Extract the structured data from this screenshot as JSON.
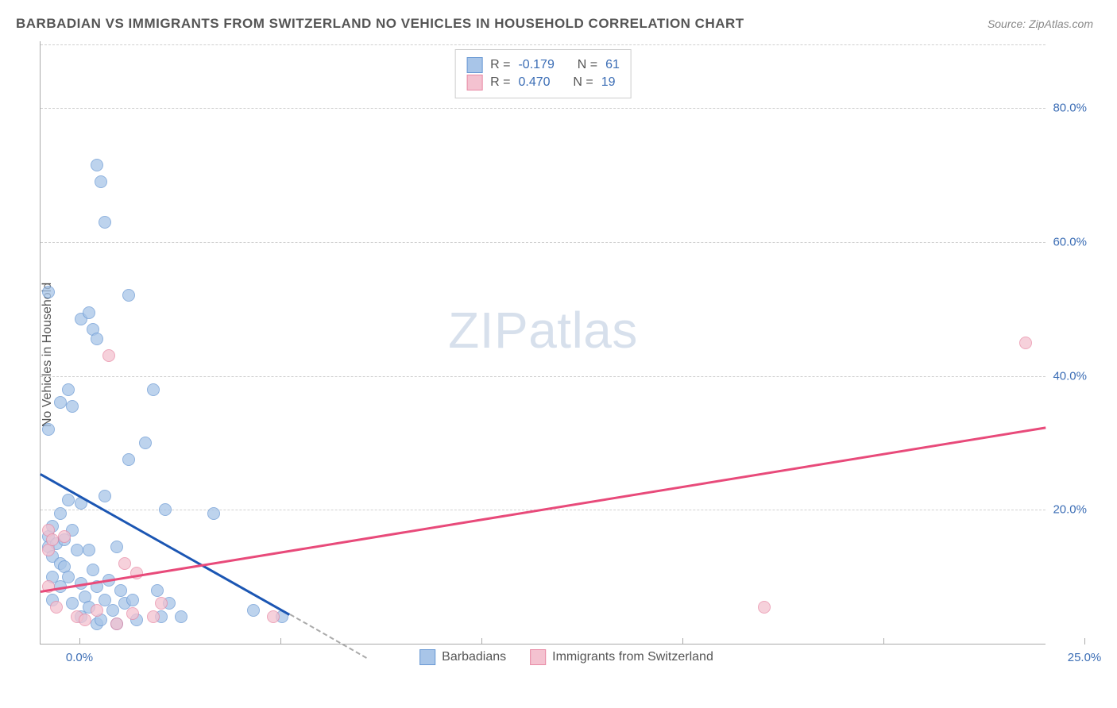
{
  "title": "BARBADIAN VS IMMIGRANTS FROM SWITZERLAND NO VEHICLES IN HOUSEHOLD CORRELATION CHART",
  "source": "Source: ZipAtlas.com",
  "watermark_a": "ZIP",
  "watermark_b": "atlas",
  "y_axis_label": "No Vehicles in Household",
  "chart": {
    "type": "scatter",
    "xlim": [
      0,
      25
    ],
    "ylim": [
      0,
      90
    ],
    "x_ticks": [
      {
        "pos": 0,
        "label": "0.0%"
      },
      {
        "pos": 5,
        "label": ""
      },
      {
        "pos": 10,
        "label": ""
      },
      {
        "pos": 15,
        "label": ""
      },
      {
        "pos": 20,
        "label": ""
      },
      {
        "pos": 25,
        "label": "25.0%"
      }
    ],
    "y_ticks": [
      {
        "pos": 20,
        "label": "20.0%"
      },
      {
        "pos": 40,
        "label": "40.0%"
      },
      {
        "pos": 60,
        "label": "60.0%"
      },
      {
        "pos": 80,
        "label": "80.0%"
      }
    ],
    "grid_color": "#d8d8d8",
    "background_color": "#ffffff",
    "series": [
      {
        "name": "Barbadians",
        "fill_color": "#a8c5e8",
        "stroke_color": "#6a99d4",
        "marker_size": 16,
        "opacity": 0.75,
        "r_label": "R =",
        "r_value": "-0.179",
        "n_label": "N =",
        "n_value": "61",
        "trend": {
          "color": "#1b56b3",
          "x1": 0.0,
          "y1": 25.5,
          "x2": 6.2,
          "y2": 4.5,
          "dash_x2": 8.1,
          "dash_y2": -2
        },
        "points": [
          [
            0.2,
            52.5
          ],
          [
            0.2,
            32.0
          ],
          [
            0.2,
            16.0
          ],
          [
            0.2,
            14.5
          ],
          [
            0.3,
            10.0
          ],
          [
            0.3,
            17.5
          ],
          [
            0.3,
            13.0
          ],
          [
            0.3,
            6.5
          ],
          [
            0.4,
            15.0
          ],
          [
            0.5,
            36.0
          ],
          [
            0.5,
            19.5
          ],
          [
            0.5,
            12.0
          ],
          [
            0.5,
            8.5
          ],
          [
            0.6,
            15.5
          ],
          [
            0.6,
            11.5
          ],
          [
            0.7,
            38.0
          ],
          [
            0.7,
            21.5
          ],
          [
            0.7,
            10.0
          ],
          [
            0.8,
            35.5
          ],
          [
            0.8,
            17.0
          ],
          [
            0.8,
            6.0
          ],
          [
            0.9,
            14.0
          ],
          [
            1.0,
            48.5
          ],
          [
            1.0,
            21.0
          ],
          [
            1.0,
            9.0
          ],
          [
            1.0,
            4.0
          ],
          [
            1.1,
            7.0
          ],
          [
            1.2,
            49.5
          ],
          [
            1.2,
            14.0
          ],
          [
            1.2,
            5.5
          ],
          [
            1.3,
            47.0
          ],
          [
            1.3,
            11.0
          ],
          [
            1.4,
            71.5
          ],
          [
            1.4,
            45.5
          ],
          [
            1.4,
            8.5
          ],
          [
            1.4,
            3.0
          ],
          [
            1.5,
            69.0
          ],
          [
            1.5,
            3.5
          ],
          [
            1.6,
            63.0
          ],
          [
            1.6,
            22.0
          ],
          [
            1.6,
            6.5
          ],
          [
            1.7,
            9.5
          ],
          [
            1.8,
            5.0
          ],
          [
            1.9,
            14.5
          ],
          [
            1.9,
            3.0
          ],
          [
            2.0,
            8.0
          ],
          [
            2.1,
            6.0
          ],
          [
            2.2,
            52.0
          ],
          [
            2.2,
            27.5
          ],
          [
            2.3,
            6.5
          ],
          [
            2.4,
            3.5
          ],
          [
            2.6,
            30.0
          ],
          [
            2.8,
            38.0
          ],
          [
            2.9,
            8.0
          ],
          [
            3.0,
            4.0
          ],
          [
            3.1,
            20.0
          ],
          [
            3.2,
            6.0
          ],
          [
            3.5,
            4.0
          ],
          [
            4.3,
            19.5
          ],
          [
            5.3,
            5.0
          ],
          [
            6.0,
            4.0
          ]
        ]
      },
      {
        "name": "Immigrants from Switzerland",
        "fill_color": "#f4c2d0",
        "stroke_color": "#e88aa5",
        "marker_size": 16,
        "opacity": 0.75,
        "r_label": "R =",
        "r_value": "0.470",
        "n_label": "N =",
        "n_value": "19",
        "trend": {
          "color": "#e84a7a",
          "x1": 0.0,
          "y1": 8.0,
          "x2": 25.0,
          "y2": 32.5
        },
        "points": [
          [
            0.2,
            17.0
          ],
          [
            0.2,
            14.0
          ],
          [
            0.2,
            8.5
          ],
          [
            0.3,
            15.5
          ],
          [
            0.4,
            5.5
          ],
          [
            0.6,
            16.0
          ],
          [
            0.9,
            4.0
          ],
          [
            1.1,
            3.5
          ],
          [
            1.4,
            5.0
          ],
          [
            1.7,
            43.0
          ],
          [
            1.9,
            3.0
          ],
          [
            2.1,
            12.0
          ],
          [
            2.3,
            4.5
          ],
          [
            2.4,
            10.5
          ],
          [
            2.8,
            4.0
          ],
          [
            3.0,
            6.0
          ],
          [
            5.8,
            4.0
          ],
          [
            18.0,
            5.5
          ],
          [
            24.5,
            45.0
          ]
        ]
      }
    ]
  }
}
